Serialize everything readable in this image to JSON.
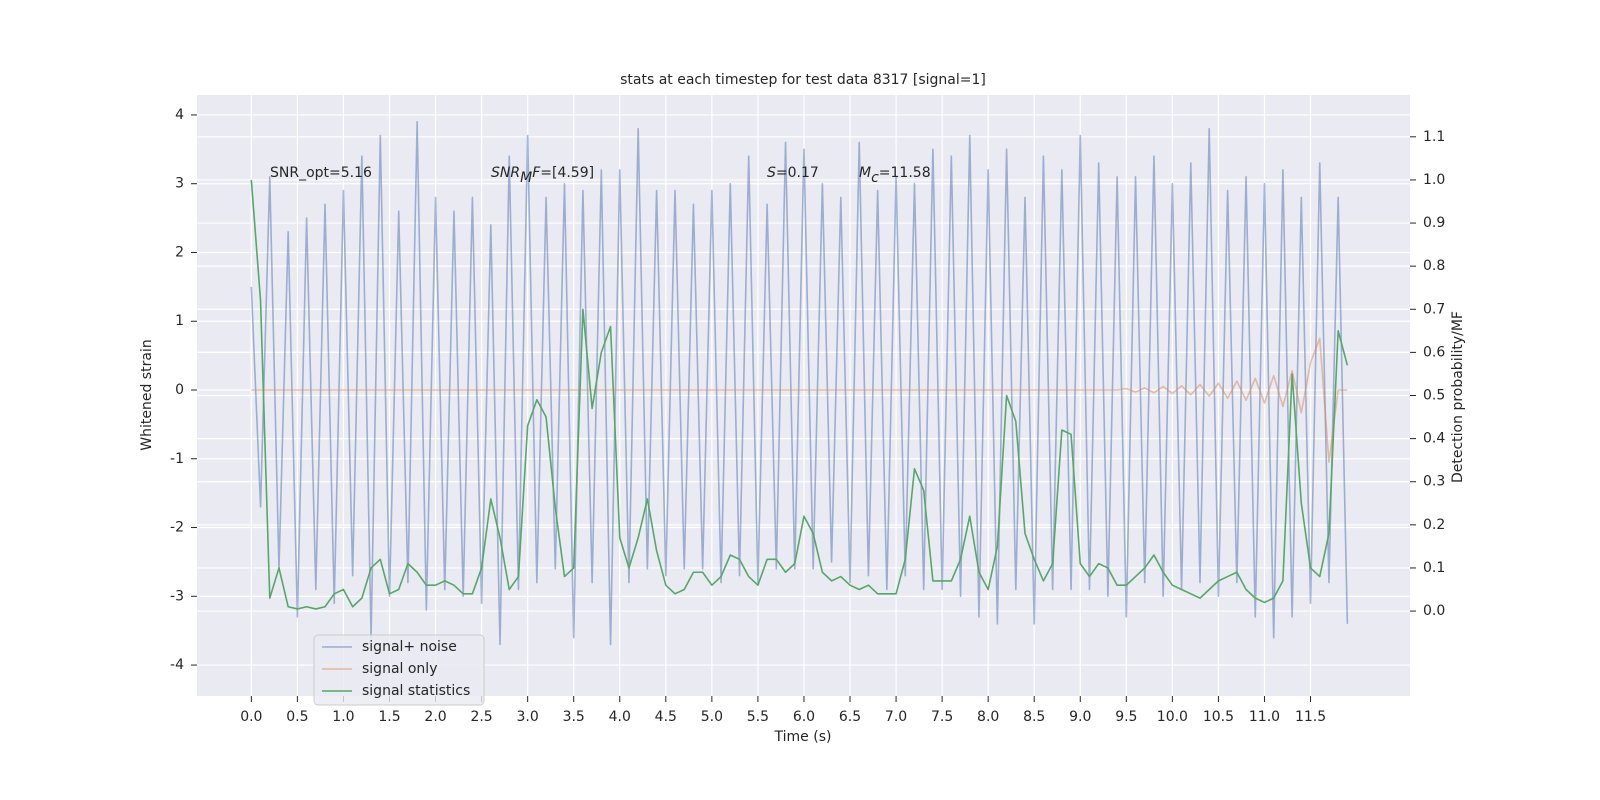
{
  "chart_data": {
    "type": "line",
    "title": "stats at each timestep for test data 8317 [signal=1]",
    "xlabel": "Time (s)",
    "ylabel": "Whitened strain",
    "y2label": "Detection probability/MF",
    "annotations": [
      {
        "parts": [
          {
            "text": "SNR_opt=5.16"
          }
        ]
      },
      {
        "parts": [
          {
            "text": "SNR",
            "italic": true
          },
          {
            "text": "M",
            "italic": true,
            "sub": true
          },
          {
            "text": "F",
            "italic": true
          },
          {
            "text": "=[4.59]"
          }
        ]
      },
      {
        "parts": [
          {
            "text": "S",
            "italic": true
          },
          {
            "text": "=0.17"
          }
        ]
      },
      {
        "parts": [
          {
            "text": "M",
            "italic": true
          },
          {
            "text": "c",
            "italic": true,
            "sub": true
          },
          {
            "text": "=11.58"
          }
        ]
      }
    ],
    "x": [
      0,
      0.1,
      0.2,
      0.3,
      0.4,
      0.5,
      0.6,
      0.7,
      0.8,
      0.9,
      1,
      1.1,
      1.2,
      1.3,
      1.4,
      1.5,
      1.6,
      1.7,
      1.8,
      1.9,
      2,
      2.1,
      2.2,
      2.3,
      2.4,
      2.5,
      2.6,
      2.7,
      2.8,
      2.9,
      3,
      3.1,
      3.2,
      3.3,
      3.4,
      3.5,
      3.6,
      3.7,
      3.8,
      3.9,
      4,
      4.1,
      4.2,
      4.3,
      4.4,
      4.5,
      4.6,
      4.7,
      4.8,
      4.9,
      5,
      5.1,
      5.2,
      5.3,
      5.4,
      5.5,
      5.6,
      5.7,
      5.8,
      5.9,
      6,
      6.1,
      6.2,
      6.3,
      6.4,
      6.5,
      6.6,
      6.7,
      6.8,
      6.9,
      7,
      7.1,
      7.2,
      7.3,
      7.4,
      7.5,
      7.6,
      7.7,
      7.8,
      7.9,
      8,
      8.1,
      8.2,
      8.3,
      8.4,
      8.5,
      8.6,
      8.7,
      8.8,
      8.9,
      9,
      9.1,
      9.2,
      9.3,
      9.4,
      9.5,
      9.6,
      9.7,
      9.8,
      9.9,
      10,
      10.1,
      10.2,
      10.3,
      10.4,
      10.5,
      10.6,
      10.7,
      10.8,
      10.9,
      11,
      11.1,
      11.2,
      11.3,
      11.4,
      11.5,
      11.6,
      11.7,
      11.8,
      11.9
    ],
    "series": [
      {
        "name": "signal+ noise",
        "color": "#4c72b0",
        "opacity": 0.5,
        "axis": "y",
        "values": [
          1.5,
          -1.7,
          3.1,
          -2.6,
          2.3,
          -3.3,
          2.5,
          -2.9,
          2.7,
          -3.1,
          2.9,
          -2.7,
          3.4,
          -3.6,
          3.7,
          -3.0,
          2.6,
          -2.8,
          3.9,
          -3.2,
          2.8,
          -2.9,
          2.6,
          -3.0,
          2.8,
          -3.1,
          2.4,
          -3.7,
          3.4,
          -2.9,
          3.7,
          -2.8,
          2.8,
          -2.6,
          3.0,
          -3.6,
          2.9,
          -2.8,
          3.2,
          -3.7,
          3.2,
          -2.8,
          3.8,
          -2.6,
          2.9,
          -2.7,
          2.9,
          -2.6,
          2.7,
          -2.6,
          2.9,
          -2.8,
          3.0,
          -2.7,
          3.4,
          -2.8,
          2.7,
          -2.6,
          3.6,
          -2.6,
          3.5,
          -2.6,
          3.0,
          -2.5,
          2.8,
          -2.8,
          3.6,
          -2.7,
          2.9,
          -2.9,
          3.1,
          -2.7,
          3.0,
          -2.9,
          3.5,
          -2.9,
          3.4,
          -3.0,
          3.7,
          -3.3,
          3.2,
          -3.4,
          3.5,
          -2.9,
          2.8,
          -3.4,
          3.4,
          -2.9,
          3.2,
          -2.9,
          3.7,
          -2.9,
          3.3,
          -3.0,
          3.1,
          -3.3,
          3.1,
          -2.8,
          3.4,
          -3.0,
          3.0,
          -2.9,
          3.3,
          -2.8,
          3.8,
          -3.0,
          2.9,
          -2.8,
          3.1,
          -3.3,
          3.0,
          -3.6,
          3.2,
          -3.3,
          2.8,
          -3.1,
          3.3,
          -2.8,
          2.8,
          -3.4
        ]
      },
      {
        "name": "signal only",
        "color": "#dd8452",
        "opacity": 0.5,
        "axis": "y",
        "values": [
          0,
          0,
          0,
          0,
          0,
          0,
          0,
          0,
          0,
          0,
          0,
          0,
          0,
          0,
          0,
          0,
          0,
          0,
          0,
          0,
          0,
          0,
          0,
          0,
          0,
          0,
          0,
          0,
          0,
          0,
          0,
          0,
          0,
          0,
          0,
          0,
          0,
          0,
          0,
          0,
          0,
          0,
          0,
          0,
          0,
          0,
          0,
          0,
          0,
          0,
          0,
          0,
          0,
          0,
          0,
          0,
          0,
          0,
          0,
          0,
          0,
          0,
          0,
          0,
          0,
          0,
          0,
          0,
          0,
          0,
          0,
          0,
          0,
          0,
          0,
          0,
          0,
          0,
          0,
          0,
          0,
          0,
          0,
          0,
          0,
          0,
          0,
          0,
          0,
          0,
          0,
          0,
          0,
          0,
          0,
          0.02,
          -0.03,
          0.03,
          -0.04,
          0.05,
          -0.05,
          0.06,
          -0.07,
          0.08,
          -0.09,
          0.1,
          -0.12,
          0.13,
          -0.15,
          0.17,
          -0.19,
          0.21,
          -0.24,
          0.28,
          -0.33,
          0.4,
          0.75,
          -1.05,
          0,
          0
        ]
      },
      {
        "name": "signal statistics",
        "color": "#55a868",
        "opacity": 1,
        "axis": "y2",
        "values": [
          1.0,
          0.72,
          0.03,
          0.1,
          0.01,
          0.005,
          0.01,
          0.005,
          0.01,
          0.04,
          0.05,
          0.01,
          0.03,
          0.1,
          0.12,
          0.04,
          0.05,
          0.11,
          0.09,
          0.06,
          0.06,
          0.07,
          0.06,
          0.04,
          0.04,
          0.1,
          0.26,
          0.17,
          0.05,
          0.08,
          0.43,
          0.49,
          0.45,
          0.24,
          0.08,
          0.1,
          0.7,
          0.47,
          0.6,
          0.66,
          0.17,
          0.1,
          0.17,
          0.26,
          0.14,
          0.06,
          0.04,
          0.05,
          0.09,
          0.09,
          0.06,
          0.08,
          0.13,
          0.12,
          0.08,
          0.06,
          0.12,
          0.12,
          0.09,
          0.11,
          0.22,
          0.18,
          0.09,
          0.07,
          0.08,
          0.06,
          0.05,
          0.06,
          0.04,
          0.04,
          0.04,
          0.12,
          0.33,
          0.28,
          0.07,
          0.07,
          0.07,
          0.12,
          0.22,
          0.09,
          0.05,
          0.15,
          0.5,
          0.44,
          0.18,
          0.12,
          0.07,
          0.11,
          0.42,
          0.41,
          0.11,
          0.08,
          0.11,
          0.1,
          0.06,
          0.06,
          0.08,
          0.1,
          0.13,
          0.09,
          0.06,
          0.05,
          0.04,
          0.03,
          0.05,
          0.07,
          0.08,
          0.09,
          0.05,
          0.03,
          0.02,
          0.03,
          0.07,
          0.55,
          0.25,
          0.1,
          0.08,
          0.18,
          0.65,
          0.57
        ]
      }
    ],
    "xlim": [
      -0.59,
      12.58
    ],
    "xticks": [
      {
        "value": 0,
        "label": "0.0"
      },
      0.5,
      {
        "value": 1,
        "label": "1.0"
      },
      1.5,
      {
        "value": 2,
        "label": "2.0"
      },
      2.5,
      {
        "value": 3,
        "label": "3.0"
      },
      3.5,
      {
        "value": 4,
        "label": "4.0"
      },
      4.5,
      {
        "value": 5,
        "label": "5.0"
      },
      5.5,
      {
        "value": 6,
        "label": "6.0"
      },
      6.5,
      {
        "value": 7,
        "label": "7.0"
      },
      7.5,
      {
        "value": 8,
        "label": "8.0"
      },
      8.5,
      {
        "value": 9,
        "label": "9.0"
      },
      9.5,
      {
        "value": 10,
        "label": "10.0"
      },
      10.5,
      {
        "value": 11,
        "label": "11.0"
      },
      11.5
    ],
    "ylim": [
      -4.45,
      4.29
    ],
    "yticks": [
      -4,
      -3,
      -2,
      -1,
      0,
      1,
      2,
      3,
      4
    ],
    "y2lim": [
      -0.197,
      1.197
    ],
    "y2ticks": [
      {
        "value": 0,
        "label": "0.0"
      },
      0.1,
      0.2,
      0.3,
      0.4,
      0.5,
      0.6,
      0.7,
      0.8,
      0.9,
      {
        "value": 1,
        "label": "1.0"
      },
      1.1
    ],
    "grid": true,
    "legend_loc": "lower left"
  }
}
